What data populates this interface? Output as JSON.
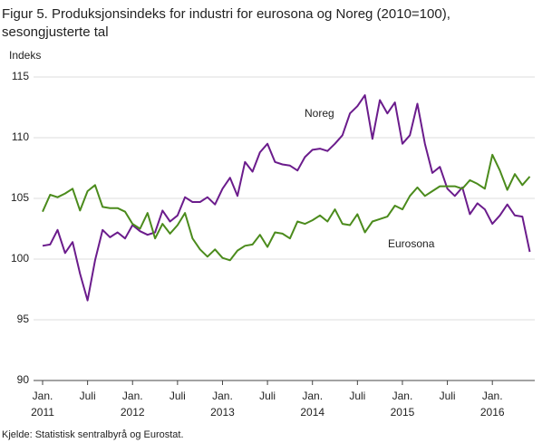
{
  "chart_data": {
    "type": "line",
    "title": [
      "Figur 5. Produksjonsindeks for industri for eurosona og Noreg (2010=100),",
      "sesongjusterte tal"
    ],
    "ylabel": "Indeks",
    "source": "Kjelde: Statistisk sentralbyrå og Eurostat.",
    "categories": [
      "Jan.",
      null,
      null,
      null,
      null,
      null,
      "Juli",
      null,
      null,
      null,
      null,
      null,
      "Jan.",
      null,
      null,
      null,
      null,
      null,
      "Juli",
      null,
      null,
      null,
      null,
      null,
      "Jan.",
      null,
      null,
      null,
      null,
      null,
      "Juli",
      null,
      null,
      null,
      null,
      null,
      "Jan.",
      null,
      null,
      null,
      null,
      null,
      "Juli",
      null,
      null,
      null,
      null,
      null,
      "Jan.",
      null,
      null,
      null,
      null,
      null,
      "Juli",
      null,
      null,
      null,
      null,
      null,
      "Jan.",
      null,
      null,
      null,
      null,
      null
    ],
    "year_labels": [
      "2011",
      "2012",
      "2013",
      "2014",
      "2015",
      "2016"
    ],
    "ylim": [
      90,
      115
    ],
    "yticks": [
      90,
      95,
      100,
      105,
      110,
      115
    ],
    "grid": true,
    "series": [
      {
        "name": "Noreg",
        "color": "#6b1c8c",
        "values": [
          101.1,
          101.2,
          102.4,
          100.5,
          101.4,
          98.8,
          96.6,
          99.9,
          102.4,
          101.8,
          102.2,
          101.7,
          102.8,
          102.3,
          102.0,
          102.2,
          104.0,
          103.1,
          103.6,
          105.1,
          104.7,
          104.7,
          105.1,
          104.5,
          105.8,
          106.7,
          105.2,
          108.0,
          107.2,
          108.8,
          109.5,
          108.0,
          107.8,
          107.7,
          107.3,
          108.4,
          109.0,
          109.1,
          108.9,
          109.5,
          110.2,
          112.0,
          112.6,
          113.5,
          109.9,
          113.1,
          112.0,
          112.9,
          109.5,
          110.2,
          112.8,
          109.5,
          107.1,
          107.6,
          105.8,
          105.2,
          105.9,
          103.7,
          104.6,
          104.1,
          102.9,
          103.6,
          104.5,
          103.6,
          103.5,
          100.6
        ]
      },
      {
        "name": "Eurosona",
        "color": "#4b8b1c",
        "values": [
          103.9,
          105.3,
          105.1,
          105.4,
          105.8,
          104.0,
          105.6,
          106.1,
          104.3,
          104.2,
          104.2,
          103.9,
          102.9,
          102.5,
          103.8,
          101.7,
          102.9,
          102.1,
          102.8,
          103.8,
          101.7,
          100.8,
          100.2,
          100.8,
          100.1,
          99.9,
          100.7,
          101.1,
          101.2,
          102.0,
          101.0,
          102.2,
          102.1,
          101.7,
          103.1,
          102.9,
          103.2,
          103.6,
          103.1,
          104.1,
          102.9,
          102.8,
          103.7,
          102.2,
          103.1,
          103.3,
          103.5,
          104.4,
          104.1,
          105.2,
          105.9,
          105.2,
          105.6,
          106.0,
          106.0,
          106.0,
          105.8,
          106.5,
          106.2,
          105.8,
          108.6,
          107.3,
          105.7,
          107.0,
          106.1,
          106.8
        ]
      }
    ]
  }
}
